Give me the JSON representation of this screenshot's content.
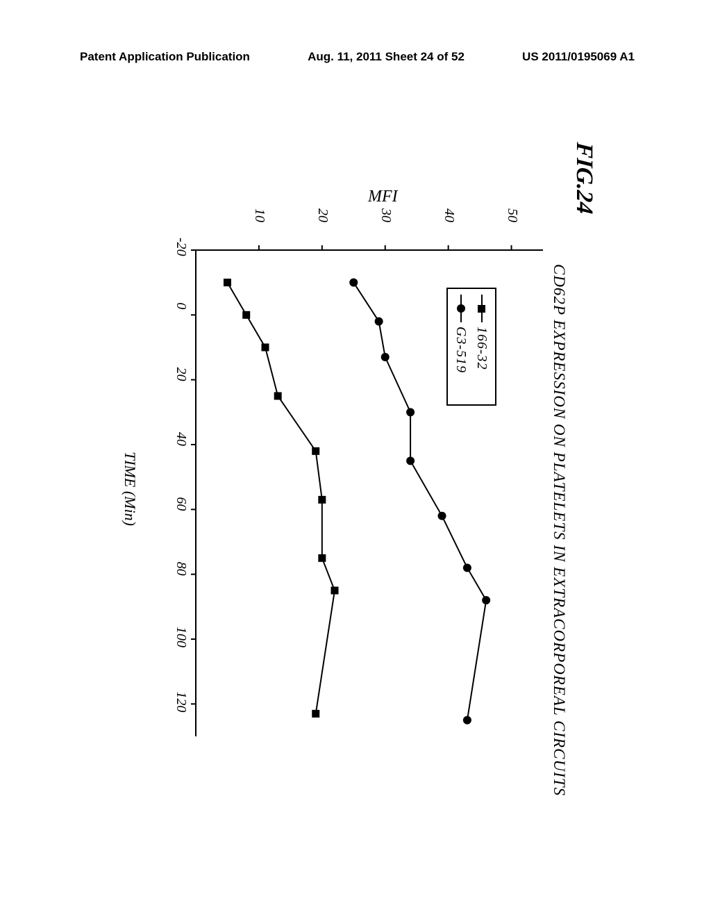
{
  "header": {
    "left": "Patent Application Publication",
    "center": "Aug. 11, 2011  Sheet 24 of 52",
    "right": "US 2011/0195069 A1"
  },
  "figure": {
    "label": "FIG.24",
    "chart": {
      "type": "line",
      "title": "CD62P EXPRESSION ON PLATELETS IN EXTRACORPOREAL CIRCUITS",
      "xlabel": "TIME (Min)",
      "ylabel": "MFI",
      "xlim": [
        -20,
        130
      ],
      "ylim": [
        0,
        55
      ],
      "xticks": [
        -20,
        0,
        20,
        40,
        60,
        80,
        100,
        120
      ],
      "yticks": [
        10,
        20,
        30,
        40,
        50
      ],
      "background_color": "#ffffff",
      "axis_color": "#000000",
      "axis_width": 2,
      "series": [
        {
          "name": "166-32",
          "marker": "square",
          "marker_size": 11,
          "color": "#000000",
          "line_width": 2,
          "x": [
            -10,
            0,
            10,
            25,
            42,
            57,
            75,
            85,
            123
          ],
          "y": [
            5,
            8,
            11,
            13,
            19,
            20,
            20,
            22,
            19
          ]
        },
        {
          "name": "G3-519",
          "marker": "circle",
          "marker_size": 12,
          "color": "#000000",
          "line_width": 2,
          "x": [
            -10,
            2,
            13,
            30,
            45,
            62,
            78,
            88,
            125
          ],
          "y": [
            25,
            29,
            30,
            34,
            34,
            39,
            43,
            46,
            43
          ]
        }
      ],
      "legend": {
        "position": "upper-left-inside",
        "items": [
          {
            "marker": "square",
            "label": "166-32"
          },
          {
            "marker": "circle",
            "label": "G3-519"
          }
        ]
      }
    }
  }
}
